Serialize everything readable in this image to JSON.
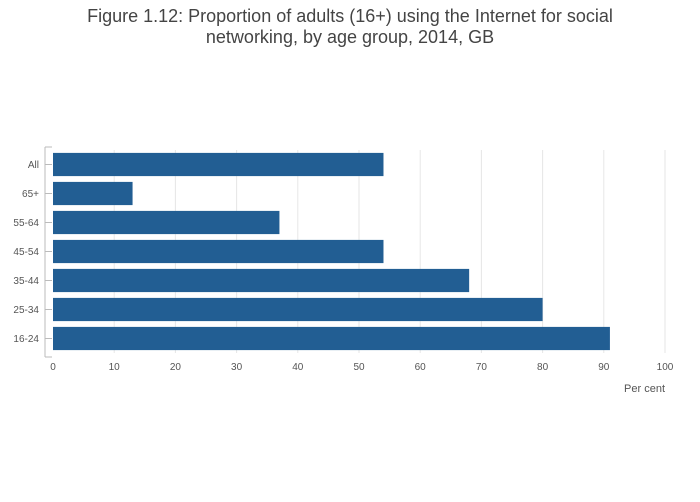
{
  "chart_data": {
    "type": "bar",
    "orientation": "horizontal",
    "title": "Figure 1.12: Proportion of adults (16+) using the Internet for social\nnetworking, by age group, 2014, GB",
    "xlabel": "Per cent",
    "ylabel": "",
    "categories": [
      "All",
      "65+",
      "55-64",
      "45-54",
      "35-44",
      "25-34",
      "16-24"
    ],
    "values": [
      54,
      13,
      37,
      54,
      68,
      80,
      91
    ],
    "xlim": [
      0,
      100
    ],
    "x_ticks": [
      0,
      10,
      20,
      30,
      40,
      50,
      60,
      70,
      80,
      90,
      100
    ],
    "grid": true,
    "legend": "none",
    "bar_color": "#225e93"
  }
}
